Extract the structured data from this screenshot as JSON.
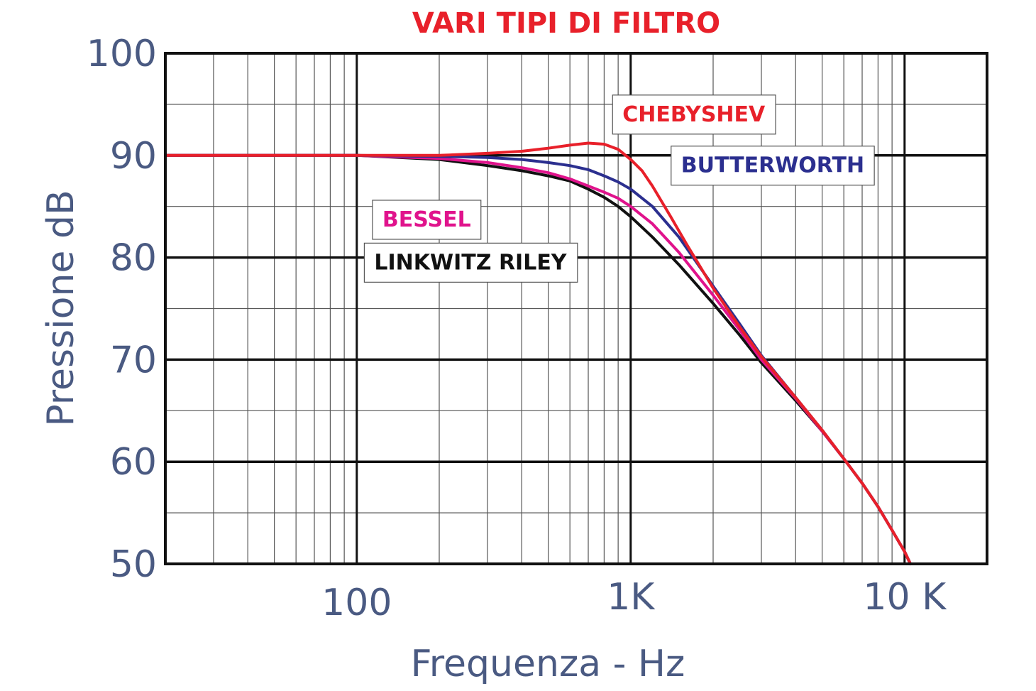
{
  "chart_data": {
    "type": "line",
    "title": "VARI TIPI DI FILTRO",
    "xlabel": "Frequenza - Hz",
    "ylabel": "Pressione  dB",
    "x_scale": "log",
    "xlim": [
      20,
      20000
    ],
    "ylim": [
      50,
      100
    ],
    "grid": true,
    "x_ticks": [
      {
        "value": 100,
        "label": "100"
      },
      {
        "value": 1000,
        "label": "1K"
      },
      {
        "value": 10000,
        "label": "10 K"
      }
    ],
    "y_ticks": [
      {
        "value": 50,
        "label": "50"
      },
      {
        "value": 60,
        "label": "60"
      },
      {
        "value": 70,
        "label": "70"
      },
      {
        "value": 80,
        "label": "80"
      },
      {
        "value": 90,
        "label": "90"
      },
      {
        "value": 100,
        "label": "100"
      }
    ],
    "series": [
      {
        "name": "LINKWITZ RILEY",
        "color": "#111111",
        "points": [
          [
            20,
            90
          ],
          [
            100,
            90
          ],
          [
            200,
            89.6
          ],
          [
            300,
            89
          ],
          [
            400,
            88.5
          ],
          [
            500,
            88
          ],
          [
            600,
            87.5
          ],
          [
            700,
            86.7
          ],
          [
            800,
            85.9
          ],
          [
            900,
            85
          ],
          [
            1000,
            84
          ],
          [
            1200,
            82
          ],
          [
            1500,
            79.3
          ],
          [
            2000,
            75.5
          ],
          [
            2500,
            72.4
          ],
          [
            3000,
            69.7
          ],
          [
            4000,
            66
          ],
          [
            5000,
            63
          ],
          [
            6000,
            60.3
          ],
          [
            7000,
            57.9
          ],
          [
            8000,
            55.6
          ],
          [
            9000,
            53.3
          ],
          [
            10000,
            51.2
          ],
          [
            10500,
            50
          ]
        ]
      },
      {
        "name": "BESSEL",
        "color": "#e0138c",
        "points": [
          [
            20,
            90
          ],
          [
            100,
            90
          ],
          [
            200,
            89.7
          ],
          [
            300,
            89.3
          ],
          [
            400,
            88.8
          ],
          [
            500,
            88.3
          ],
          [
            600,
            87.7
          ],
          [
            700,
            87
          ],
          [
            800,
            86.4
          ],
          [
            900,
            85.8
          ],
          [
            1000,
            85
          ],
          [
            1200,
            83.3
          ],
          [
            1500,
            80.5
          ],
          [
            2000,
            76.3
          ],
          [
            2500,
            72.9
          ],
          [
            3000,
            70
          ],
          [
            4000,
            66.2
          ],
          [
            5000,
            63
          ],
          [
            6000,
            60.3
          ],
          [
            7000,
            57.9
          ],
          [
            8000,
            55.6
          ],
          [
            9000,
            53.3
          ],
          [
            10000,
            51.2
          ],
          [
            10500,
            50
          ]
        ]
      },
      {
        "name": "BUTTERWORTH",
        "color": "#2b2f8f",
        "points": [
          [
            20,
            90
          ],
          [
            100,
            90
          ],
          [
            200,
            89.9
          ],
          [
            300,
            89.8
          ],
          [
            400,
            89.6
          ],
          [
            500,
            89.3
          ],
          [
            600,
            89
          ],
          [
            700,
            88.6
          ],
          [
            800,
            88
          ],
          [
            900,
            87.4
          ],
          [
            1000,
            86.7
          ],
          [
            1200,
            85
          ],
          [
            1500,
            82
          ],
          [
            2000,
            77.2
          ],
          [
            2500,
            73.5
          ],
          [
            3000,
            70.4
          ],
          [
            4000,
            66.3
          ],
          [
            5000,
            63.1
          ],
          [
            6000,
            60.3
          ],
          [
            7000,
            57.9
          ],
          [
            8000,
            55.6
          ],
          [
            9000,
            53.3
          ],
          [
            10000,
            51.2
          ],
          [
            10500,
            50
          ]
        ]
      },
      {
        "name": "CHEBYSHEV",
        "color": "#e8202a",
        "points": [
          [
            20,
            90
          ],
          [
            100,
            90
          ],
          [
            200,
            90
          ],
          [
            300,
            90.2
          ],
          [
            400,
            90.4
          ],
          [
            500,
            90.7
          ],
          [
            600,
            91
          ],
          [
            700,
            91.2
          ],
          [
            800,
            91.1
          ],
          [
            900,
            90.6
          ],
          [
            1000,
            89.6
          ],
          [
            1100,
            88.5
          ],
          [
            1200,
            87
          ],
          [
            1400,
            84
          ],
          [
            1600,
            81.3
          ],
          [
            2000,
            77
          ],
          [
            2500,
            73.2
          ],
          [
            3000,
            70.3
          ],
          [
            4000,
            66.3
          ],
          [
            5000,
            63.1
          ],
          [
            6000,
            60.3
          ],
          [
            7000,
            57.9
          ],
          [
            8000,
            55.6
          ],
          [
            9000,
            53.3
          ],
          [
            10000,
            51.2
          ],
          [
            10500,
            50
          ],
          [
            17000,
            50
          ]
        ]
      }
    ],
    "annotations": [
      {
        "text": "CHEBYSHEV",
        "color": "#e8202a",
        "x": 1700,
        "y": 94.1
      },
      {
        "text": "BUTTERWORTH",
        "color": "#2b2f8f",
        "x": 3300,
        "y": 89.1
      },
      {
        "text": "BESSEL",
        "color": "#e0138c",
        "x": 180,
        "y": 83.8
      },
      {
        "text": "LINKWITZ RILEY",
        "color": "#111111",
        "x": 260,
        "y": 79.6
      }
    ],
    "colors": {
      "title": "#e8202a",
      "axis_text": "#4a5a82",
      "frame": "#111111",
      "major_grid": "#111111",
      "minor_grid": "#555555"
    }
  }
}
